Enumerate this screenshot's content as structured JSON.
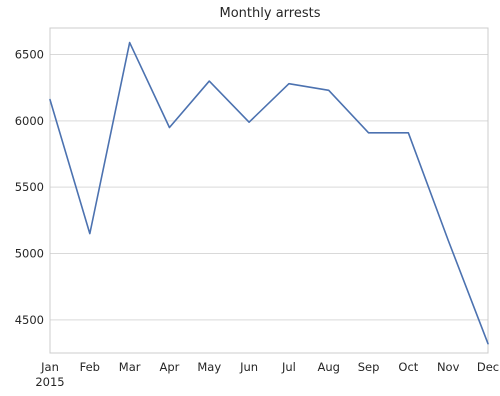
{
  "chart_data": {
    "type": "line",
    "title": "Monthly arrests",
    "xlabel": "",
    "ylabel": "",
    "x": [
      "Jan",
      "Feb",
      "Mar",
      "Apr",
      "May",
      "Jun",
      "Jul",
      "Aug",
      "Sep",
      "Oct",
      "Nov",
      "Dec"
    ],
    "x_year_label": "2015",
    "series": [
      {
        "values": [
          6160,
          5150,
          6590,
          5950,
          6300,
          5990,
          6280,
          6230,
          5910,
          5910,
          5100,
          4320
        ],
        "color": "#4c72b0"
      }
    ],
    "yticks": [
      4500,
      5000,
      5500,
      6000,
      6500
    ],
    "ylim": [
      4250,
      6700
    ],
    "grid": true,
    "legend": "none"
  }
}
